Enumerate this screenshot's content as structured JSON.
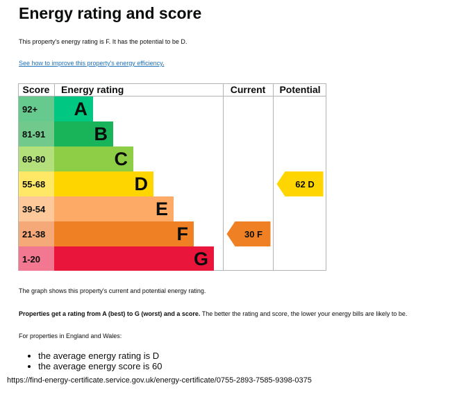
{
  "title": "Energy rating and score",
  "intro": "This property's energy rating is F. It has the potential to be D.",
  "improve_link": {
    "text": "See how to improve this property's energy efficiency",
    "suffix": "."
  },
  "chart_data": {
    "type": "table",
    "columns": [
      "Score",
      "Energy rating",
      "Current",
      "Potential"
    ],
    "bands": [
      {
        "letter": "A",
        "range": "92+",
        "color": "#00c781",
        "range_bg": "#66ca8e"
      },
      {
        "letter": "B",
        "range": "81-91",
        "color": "#19b459",
        "range_bg": "#71c98c"
      },
      {
        "letter": "C",
        "range": "69-80",
        "color": "#8dce46",
        "range_bg": "#b3e07a"
      },
      {
        "letter": "D",
        "range": "55-68",
        "color": "#ffd500",
        "range_bg": "#ffe866"
      },
      {
        "letter": "E",
        "range": "39-54",
        "color": "#fcaa65",
        "range_bg": "#fdc99b"
      },
      {
        "letter": "F",
        "range": "21-38",
        "color": "#ef8023",
        "range_bg": "#f5a978"
      },
      {
        "letter": "G",
        "range": "1-20",
        "color": "#e9153b",
        "range_bg": "#f27891"
      }
    ],
    "current": {
      "score": 30,
      "letter": "F",
      "label": "30  F",
      "color": "#ef8023"
    },
    "potential": {
      "score": 62,
      "letter": "D",
      "label": "62  D",
      "color": "#ffd500"
    }
  },
  "graph_note": "The graph shows this property's current and potential energy rating.",
  "rating_explainer": {
    "bold": "Properties get a rating from A (best) to G (worst) and a score.",
    "rest": " The better the rating and score, the lower your energy bills are likely to be."
  },
  "region_note": "For properties in England and Wales:",
  "averages": [
    "the average energy rating is D",
    "the average energy score is 60"
  ],
  "footer_url": "https://find-energy-certificate.service.gov.uk/energy-certificate/0755-2893-7585-9398-0375"
}
